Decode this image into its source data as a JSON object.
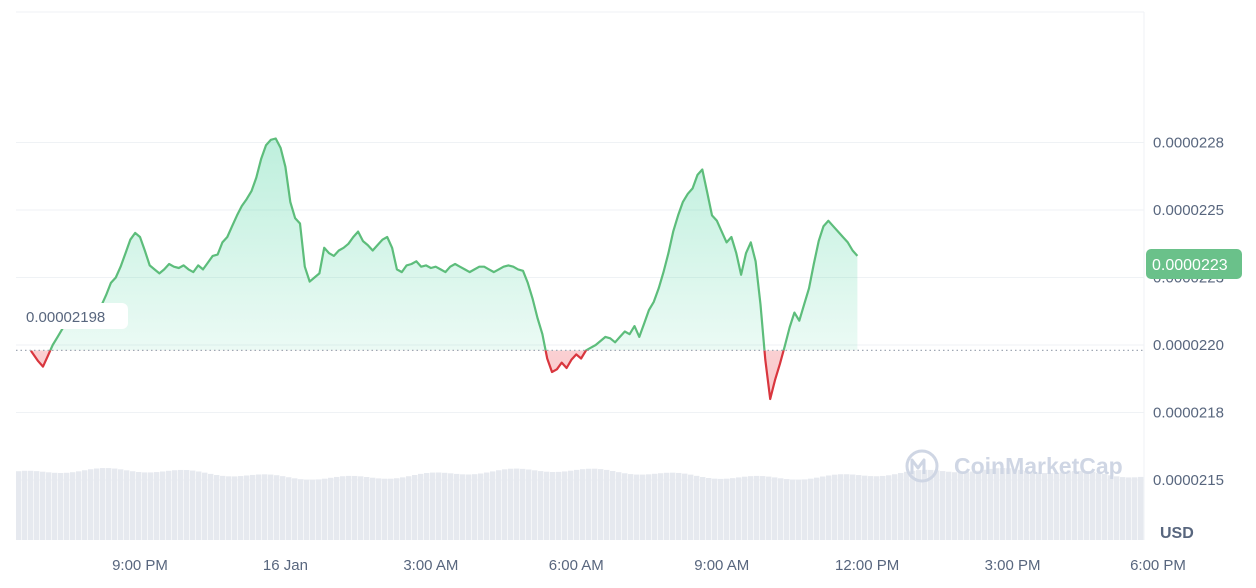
{
  "colors": {
    "up": "#16c784",
    "up_line": "#5dbd7b",
    "down_line": "#d9363e",
    "grid": "#eff2f5",
    "tick_text": "#58667e",
    "volume": "#e6e9ef",
    "current_badge": "#6ac18a"
  },
  "watermark": "CoinMarketCap",
  "watermark_icon": "coinmarketcap-logo-icon",
  "chart_data": {
    "type": "area",
    "x_unit": "hours since first tick",
    "ylim": [
      2.13e-05,
      2.32e-05
    ],
    "y_ticks": [
      {
        "value": 2.15e-05,
        "label": "0.0000215"
      },
      {
        "value": 2.175e-05,
        "label": "0.0000218"
      },
      {
        "value": 2.2e-05,
        "label": "0.0000220"
      },
      {
        "value": 2.225e-05,
        "label": "0.0000223"
      },
      {
        "value": 2.25e-05,
        "label": "0.0000225"
      },
      {
        "value": 2.275e-05,
        "label": "0.0000228"
      }
    ],
    "x_ticks": [
      {
        "x": 0,
        "label": "9:00 PM"
      },
      {
        "x": 3,
        "label": "16 Jan"
      },
      {
        "x": 6,
        "label": "3:00 AM"
      },
      {
        "x": 9,
        "label": "6:00 AM"
      },
      {
        "x": 12,
        "label": "9:00 AM"
      },
      {
        "x": 15,
        "label": "12:00 PM"
      },
      {
        "x": 18,
        "label": "3:00 PM"
      },
      {
        "x": 21,
        "label": "6:00 PM"
      }
    ],
    "xlim": [
      -2.25,
      21.8
    ],
    "y_unit": "USD",
    "baseline": {
      "value": 2.198e-05,
      "label": "0.00002198"
    },
    "current": {
      "value": 2.23e-05,
      "label": "0.0000223"
    },
    "grid": true,
    "series": [
      {
        "values": [
          [
            -2.25,
            2.19785e-05
          ],
          [
            -2.1,
            2.194e-05
          ],
          [
            -2.0,
            2.192e-05
          ],
          [
            -1.9,
            2.196e-05
          ],
          [
            -1.8,
            2.2e-05
          ],
          [
            -1.7,
            2.203e-05
          ],
          [
            -1.6,
            2.206e-05
          ],
          [
            -1.5,
            2.208e-05
          ],
          [
            -1.4,
            2.21e-05
          ],
          [
            -1.3,
            2.2105e-05
          ],
          [
            -1.2,
            2.209e-05
          ],
          [
            -1.1,
            2.208e-05
          ],
          [
            -1.0,
            2.2095e-05
          ],
          [
            -0.9,
            2.2115e-05
          ],
          [
            -0.8,
            2.2145e-05
          ],
          [
            -0.7,
            2.2185e-05
          ],
          [
            -0.6,
            2.223e-05
          ],
          [
            -0.5,
            2.225e-05
          ],
          [
            -0.4,
            2.229e-05
          ],
          [
            -0.3,
            2.234e-05
          ],
          [
            -0.2,
            2.239e-05
          ],
          [
            -0.1,
            2.2415e-05
          ],
          [
            0.0,
            2.24e-05
          ],
          [
            0.1,
            2.235e-05
          ],
          [
            0.2,
            2.2295e-05
          ],
          [
            0.3,
            2.228e-05
          ],
          [
            0.4,
            2.2265e-05
          ],
          [
            0.5,
            2.228e-05
          ],
          [
            0.6,
            2.23e-05
          ],
          [
            0.7,
            2.229e-05
          ],
          [
            0.8,
            2.2285e-05
          ],
          [
            0.9,
            2.2295e-05
          ],
          [
            1.0,
            2.228e-05
          ],
          [
            1.1,
            2.227e-05
          ],
          [
            1.2,
            2.2295e-05
          ],
          [
            1.3,
            2.228e-05
          ],
          [
            1.4,
            2.2305e-05
          ],
          [
            1.5,
            2.233e-05
          ],
          [
            1.6,
            2.2335e-05
          ],
          [
            1.7,
            2.238e-05
          ],
          [
            1.8,
            2.24e-05
          ],
          [
            1.9,
            2.244e-05
          ],
          [
            2.0,
            2.248e-05
          ],
          [
            2.1,
            2.2515e-05
          ],
          [
            2.2,
            2.254e-05
          ],
          [
            2.3,
            2.257e-05
          ],
          [
            2.4,
            2.262e-05
          ],
          [
            2.5,
            2.269e-05
          ],
          [
            2.6,
            2.274e-05
          ],
          [
            2.7,
            2.276e-05
          ],
          [
            2.8,
            2.2765e-05
          ],
          [
            2.9,
            2.273e-05
          ],
          [
            3.0,
            2.266e-05
          ],
          [
            3.1,
            2.253e-05
          ],
          [
            3.2,
            2.247e-05
          ],
          [
            3.3,
            2.245e-05
          ],
          [
            3.4,
            2.229e-05
          ],
          [
            3.5,
            2.2235e-05
          ],
          [
            3.6,
            2.225e-05
          ],
          [
            3.7,
            2.2265e-05
          ],
          [
            3.8,
            2.236e-05
          ],
          [
            3.9,
            2.234e-05
          ],
          [
            4.0,
            2.233e-05
          ],
          [
            4.1,
            2.235e-05
          ],
          [
            4.2,
            2.236e-05
          ],
          [
            4.3,
            2.2375e-05
          ],
          [
            4.4,
            2.24e-05
          ],
          [
            4.5,
            2.242e-05
          ],
          [
            4.6,
            2.2385e-05
          ],
          [
            4.7,
            2.237e-05
          ],
          [
            4.8,
            2.235e-05
          ],
          [
            4.9,
            2.237e-05
          ],
          [
            5.0,
            2.239e-05
          ],
          [
            5.1,
            2.24e-05
          ],
          [
            5.2,
            2.236e-05
          ],
          [
            5.3,
            2.228e-05
          ],
          [
            5.4,
            2.227e-05
          ],
          [
            5.5,
            2.2295e-05
          ],
          [
            5.6,
            2.23e-05
          ],
          [
            5.7,
            2.231e-05
          ],
          [
            5.8,
            2.229e-05
          ],
          [
            5.9,
            2.2295e-05
          ],
          [
            6.0,
            2.2285e-05
          ],
          [
            6.1,
            2.229e-05
          ],
          [
            6.2,
            2.228e-05
          ],
          [
            6.3,
            2.227e-05
          ],
          [
            6.4,
            2.229e-05
          ],
          [
            6.5,
            2.23e-05
          ],
          [
            6.6,
            2.229e-05
          ],
          [
            6.7,
            2.228e-05
          ],
          [
            6.8,
            2.227e-05
          ],
          [
            6.9,
            2.228e-05
          ],
          [
            7.0,
            2.229e-05
          ],
          [
            7.1,
            2.229e-05
          ],
          [
            7.2,
            2.228e-05
          ],
          [
            7.3,
            2.227e-05
          ],
          [
            7.4,
            2.228e-05
          ],
          [
            7.5,
            2.229e-05
          ],
          [
            7.6,
            2.2295e-05
          ],
          [
            7.7,
            2.229e-05
          ],
          [
            7.8,
            2.228e-05
          ],
          [
            7.9,
            2.2275e-05
          ],
          [
            8.0,
            2.223e-05
          ],
          [
            8.1,
            2.217e-05
          ],
          [
            8.2,
            2.21e-05
          ],
          [
            8.3,
            2.204e-05
          ],
          [
            8.4,
            2.195e-05
          ],
          [
            8.5,
            2.19e-05
          ],
          [
            8.6,
            2.191e-05
          ],
          [
            8.7,
            2.1935e-05
          ],
          [
            8.8,
            2.1915e-05
          ],
          [
            8.9,
            2.1945e-05
          ],
          [
            9.0,
            2.1965e-05
          ],
          [
            9.1,
            2.195e-05
          ],
          [
            9.2,
            2.198e-05
          ],
          [
            9.3,
            2.199e-05
          ],
          [
            9.4,
            2.2e-05
          ],
          [
            9.5,
            2.2015e-05
          ],
          [
            9.6,
            2.203e-05
          ],
          [
            9.7,
            2.2025e-05
          ],
          [
            9.8,
            2.201e-05
          ],
          [
            9.9,
            2.203e-05
          ],
          [
            10.0,
            2.205e-05
          ],
          [
            10.1,
            2.204e-05
          ],
          [
            10.2,
            2.207e-05
          ],
          [
            10.3,
            2.203e-05
          ],
          [
            10.4,
            2.208e-05
          ],
          [
            10.5,
            2.213e-05
          ],
          [
            10.6,
            2.216e-05
          ],
          [
            10.7,
            2.221e-05
          ],
          [
            10.8,
            2.227e-05
          ],
          [
            10.9,
            2.234e-05
          ],
          [
            11.0,
            2.242e-05
          ],
          [
            11.1,
            2.248e-05
          ],
          [
            11.2,
            2.253e-05
          ],
          [
            11.3,
            2.256e-05
          ],
          [
            11.4,
            2.258e-05
          ],
          [
            11.5,
            2.263e-05
          ],
          [
            11.6,
            2.265e-05
          ],
          [
            11.7,
            2.2565e-05
          ],
          [
            11.8,
            2.248e-05
          ],
          [
            11.9,
            2.246e-05
          ],
          [
            12.0,
            2.242e-05
          ],
          [
            12.1,
            2.238e-05
          ],
          [
            12.2,
            2.24e-05
          ],
          [
            12.3,
            2.234e-05
          ],
          [
            12.4,
            2.226e-05
          ],
          [
            12.5,
            2.234e-05
          ],
          [
            12.6,
            2.238e-05
          ],
          [
            12.7,
            2.231e-05
          ],
          [
            12.8,
            2.215e-05
          ],
          [
            12.9,
            2.1945e-05
          ],
          [
            13.0,
            2.18e-05
          ],
          [
            13.1,
            2.187e-05
          ],
          [
            13.2,
            2.193e-05
          ],
          [
            13.3,
            2.1995e-05
          ],
          [
            13.4,
            2.2065e-05
          ],
          [
            13.5,
            2.212e-05
          ],
          [
            13.6,
            2.209e-05
          ],
          [
            13.7,
            2.215e-05
          ],
          [
            13.8,
            2.221e-05
          ],
          [
            13.9,
            2.23e-05
          ],
          [
            14.0,
            2.2385e-05
          ],
          [
            14.1,
            2.244e-05
          ],
          [
            14.2,
            2.246e-05
          ],
          [
            14.3,
            2.244e-05
          ],
          [
            14.4,
            2.242e-05
          ],
          [
            14.5,
            2.24e-05
          ],
          [
            14.6,
            2.238e-05
          ],
          [
            14.7,
            2.235e-05
          ],
          [
            14.8,
            2.233e-05
          ]
        ]
      }
    ]
  }
}
